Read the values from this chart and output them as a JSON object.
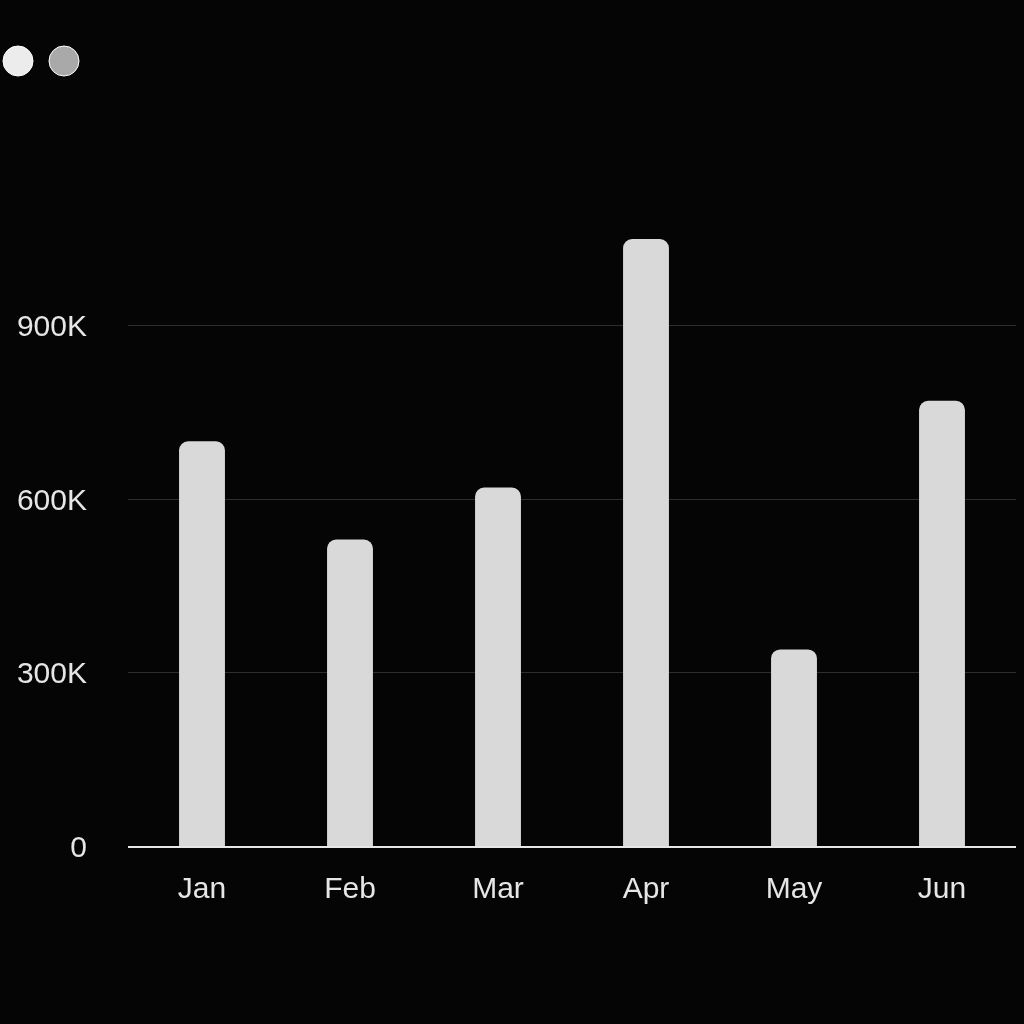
{
  "chart_data": {
    "type": "bar",
    "categories": [
      "Jan",
      "Feb",
      "Mar",
      "Apr",
      "May",
      "Jun"
    ],
    "values": [
      700000,
      530000,
      620000,
      1050000,
      340000,
      770000
    ],
    "color": "#d9d9d9",
    "ylim": [
      0,
      1050000
    ],
    "yticks": [
      0,
      {
        "value": 300000,
        "label": "300K"
      },
      {
        "value": 600000,
        "label": "600K"
      },
      {
        "value": 900000,
        "label": "900K"
      }
    ],
    "grid": "y"
  }
}
